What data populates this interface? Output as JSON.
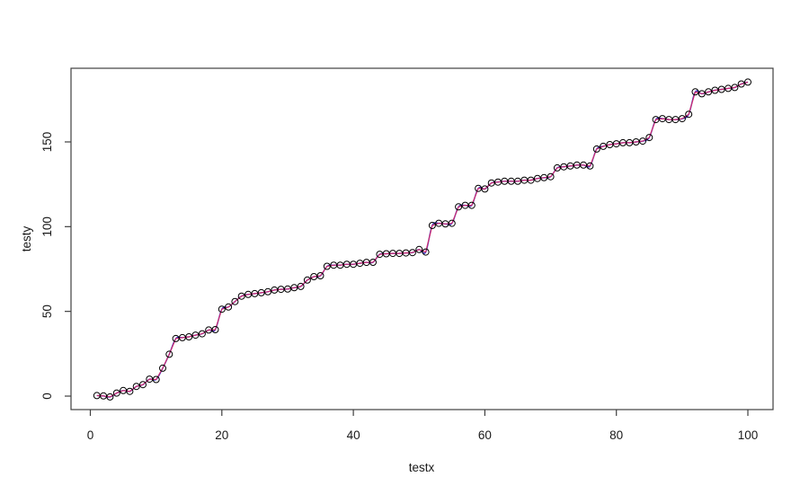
{
  "figure": {
    "background": "#ffffff",
    "border_color": "#3f3f3f",
    "text_color": "#1a1a1a"
  },
  "chart_data": {
    "type": "scatter",
    "title": "",
    "xlabel": "testx",
    "ylabel": "testy",
    "x_ticks": [
      0,
      20,
      40,
      60,
      80,
      100
    ],
    "y_ticks": [
      0,
      50,
      100,
      150
    ],
    "xlim": [
      -3.5,
      104
    ],
    "ylim": [
      -8.5,
      193.5
    ],
    "grid": false,
    "legend": null,
    "point_style": {
      "shape": "open-circle",
      "stroke": "#000000",
      "fill": "none",
      "radius_px": 3.5
    },
    "series": [
      {
        "name": "observations",
        "type": "points",
        "color": "#000000",
        "x_start": 1,
        "x_step": 1,
        "n": 100,
        "y": [
          0.3,
          0.1,
          -0.5,
          1.8,
          3.3,
          2.8,
          5.7,
          6.8,
          10.0,
          9.8,
          16.5,
          24.7,
          34.0,
          34.5,
          35.0,
          36.0,
          36.8,
          39.0,
          39.2,
          51.3,
          52.6,
          55.8,
          59.0,
          60.0,
          60.5,
          61.0,
          61.6,
          62.6,
          63.0,
          63.2,
          64.0,
          64.7,
          68.5,
          70.5,
          71.0,
          76.6,
          77.3,
          77.3,
          77.8,
          77.8,
          78.4,
          78.9,
          79.0,
          83.7,
          84.0,
          84.2,
          84.2,
          84.5,
          84.7,
          86.5,
          85.0,
          100.7,
          102.0,
          101.6,
          102.0,
          111.7,
          112.6,
          112.6,
          122.6,
          122.2,
          125.8,
          126.3,
          126.8,
          126.8,
          126.8,
          127.4,
          127.4,
          128.4,
          128.9,
          129.5,
          134.7,
          135.3,
          135.8,
          136.3,
          136.3,
          135.8,
          145.8,
          147.4,
          148.4,
          148.9,
          149.5,
          149.5,
          150.0,
          150.5,
          152.6,
          163.2,
          163.7,
          163.2,
          163.2,
          163.7,
          166.3,
          179.5,
          178.4,
          179.5,
          180.5,
          181.0,
          181.6,
          182.1,
          184.2,
          185.3
        ]
      },
      {
        "name": "smooth-fit-line",
        "type": "line",
        "color": "#2e2ebe",
        "description": "blue smooth spline fit passing through the points, visible at the jumps"
      },
      {
        "name": "monotone-fit-line",
        "type": "line",
        "color": "#d02a70",
        "description": "red/magenta fit line drawn through every data point, overlapping the blue line"
      }
    ]
  }
}
